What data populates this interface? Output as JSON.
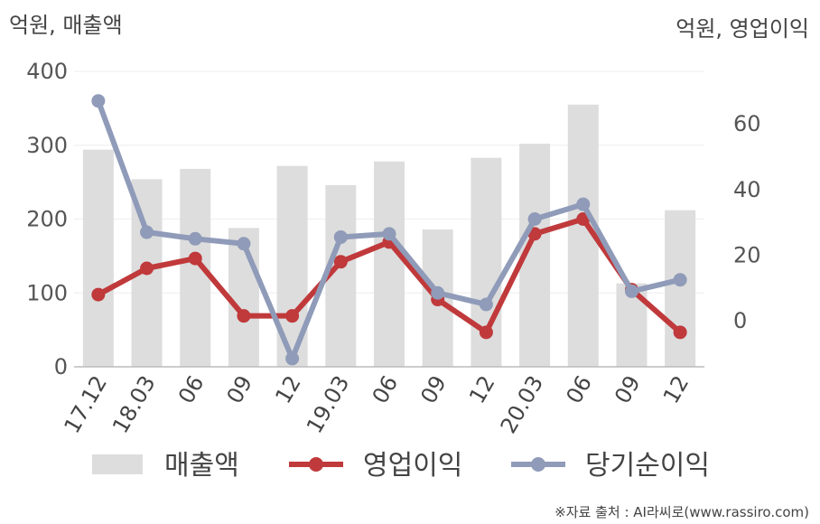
{
  "chart_data": {
    "type": "bar+line",
    "categories": [
      "17.12",
      "18.03",
      "06",
      "09",
      "12",
      "19.03",
      "06",
      "09",
      "12",
      "20.03",
      "06",
      "09",
      "12"
    ],
    "left_axis": {
      "title": "억원, 매출액",
      "ylim": [
        0,
        400
      ],
      "ticks": [
        0,
        100,
        200,
        300,
        400
      ]
    },
    "right_axis": {
      "title": "억원, 영업이익",
      "ylim": [
        -14,
        76
      ],
      "ticks": [
        0,
        20,
        40,
        60
      ]
    },
    "series": [
      {
        "name": "매출액",
        "type": "bar",
        "axis": "left",
        "color": "#dddddd",
        "values": [
          294,
          254,
          268,
          188,
          272,
          246,
          278,
          186,
          283,
          302,
          355,
          113,
          212
        ]
      },
      {
        "name": "영업이익",
        "type": "line",
        "axis": "right",
        "color": "#c0393b",
        "values": [
          8,
          16,
          19,
          1.5,
          1.5,
          18,
          24,
          6.5,
          -3.5,
          26.5,
          31,
          9.5,
          -3.5
        ]
      },
      {
        "name": "당기순이익",
        "type": "line",
        "axis": "right",
        "color": "#8f9bb8",
        "values": [
          67,
          27,
          25,
          23.5,
          -11.5,
          25.5,
          26.5,
          8.5,
          5,
          31,
          35.5,
          9,
          12.5
        ]
      }
    ],
    "grid": true,
    "legend": "bottom"
  },
  "source": "※자료 출처 : AI라씨로(www.rassiro.com)"
}
